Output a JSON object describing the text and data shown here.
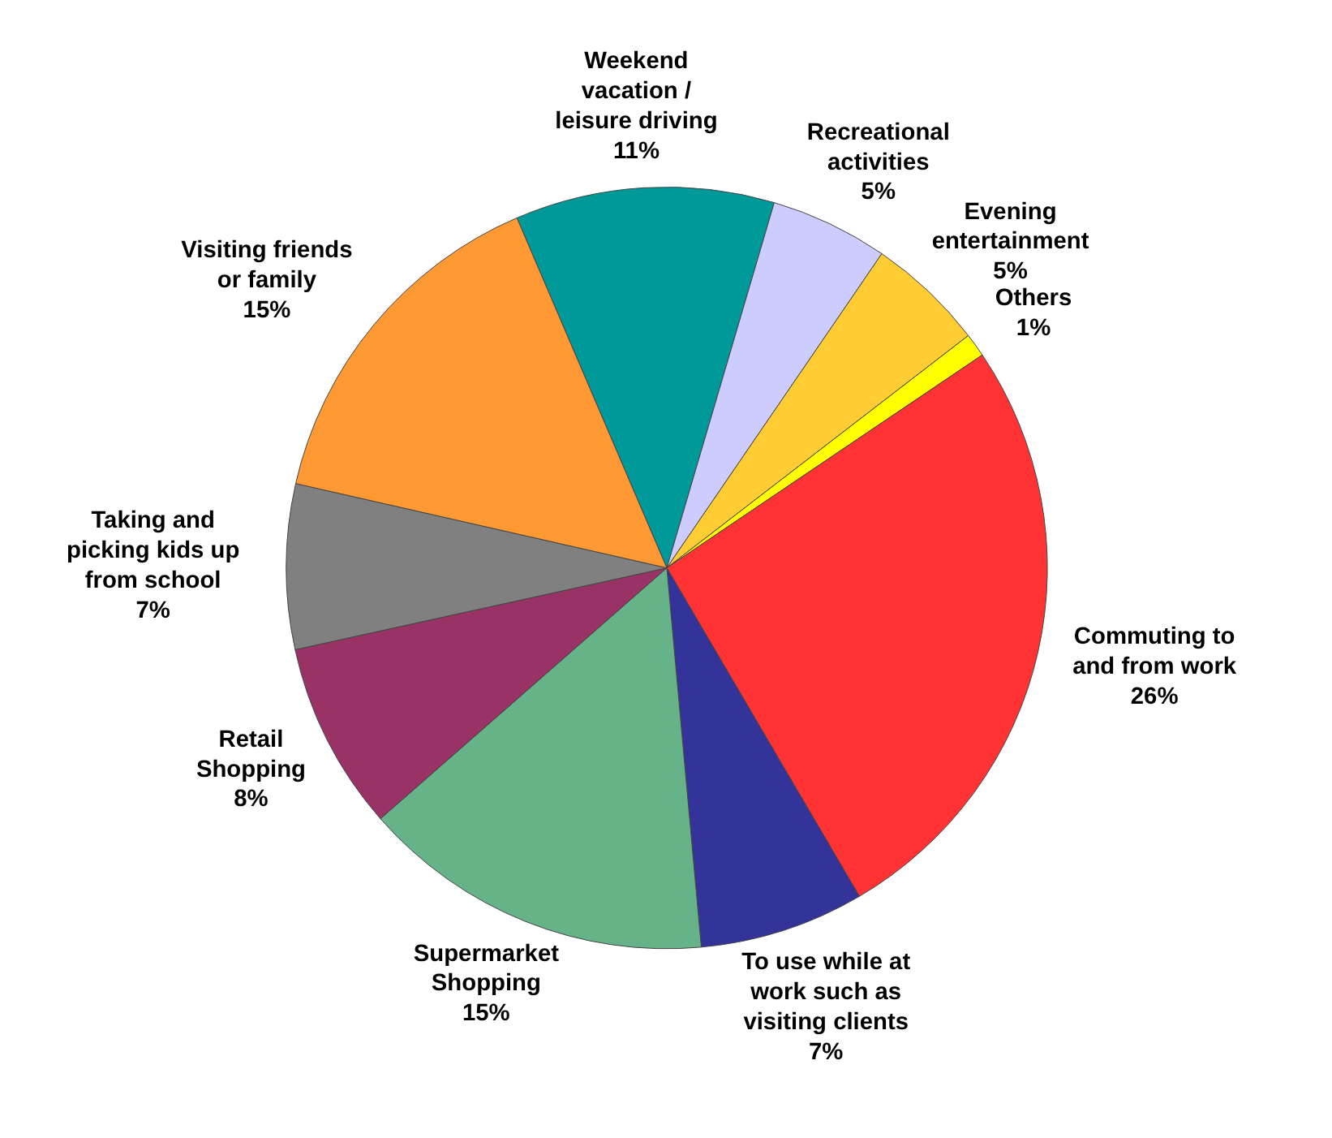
{
  "chart_data": {
    "type": "pie",
    "categories": [
      "Weekend\nvacation /\nleisure driving",
      "Recreational\nactivities",
      "Evening\nentertainment",
      "Others",
      "Commuting to\nand from work",
      "To use while at\nwork such as\nvisiting clients",
      "Supermarket\nShopping",
      "Retail\nShopping",
      "Taking and\npicking kids up\nfrom school",
      "Visiting friends\nor family"
    ],
    "values": [
      11,
      5,
      5,
      1,
      26,
      7,
      15,
      8,
      7,
      15
    ],
    "value_labels": [
      "11%",
      "5%",
      "5%",
      "1%",
      "26%",
      "7%",
      "15%",
      "8%",
      "7%",
      "15%"
    ],
    "colors": [
      "#009999",
      "#ccccff",
      "#ffcc33",
      "#ffff00",
      "#ff3333",
      "#333399",
      "#66b38a",
      "#993366",
      "#808080",
      "#ff9933"
    ]
  }
}
